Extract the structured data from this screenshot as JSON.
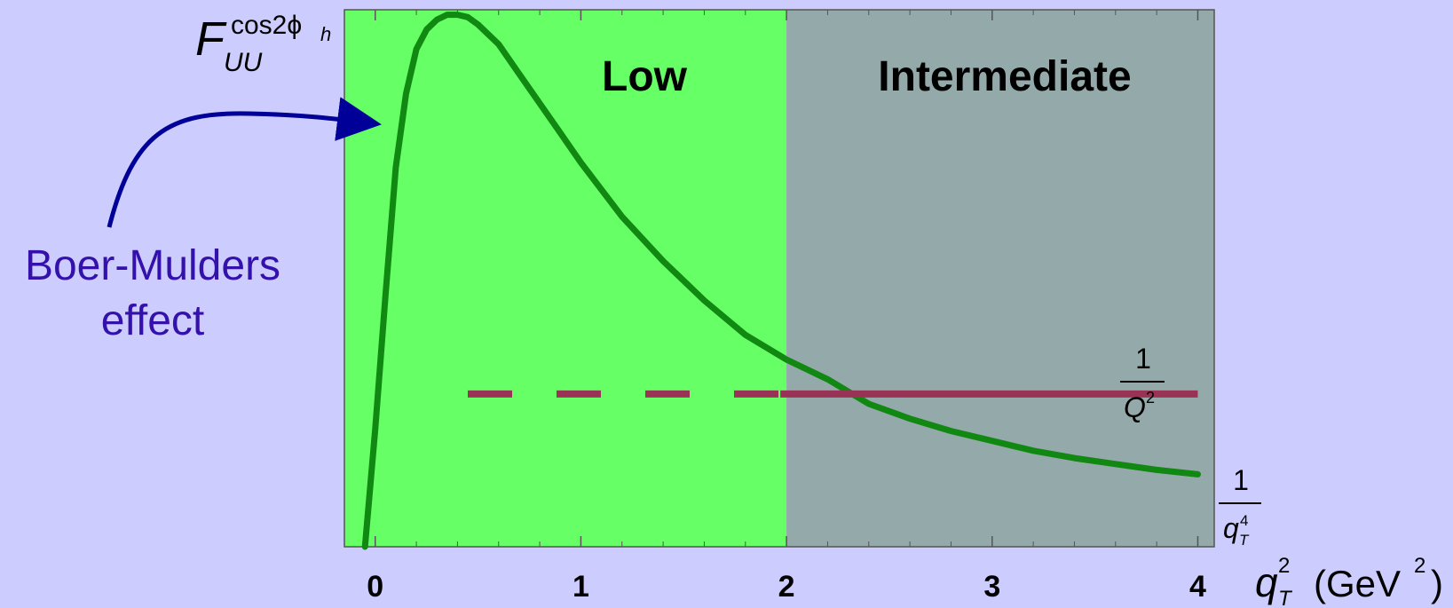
{
  "chart_data": {
    "type": "line",
    "xlim": [
      -0.15,
      4.08
    ],
    "ylim": [
      -0.09,
      1.0
    ],
    "grid": false,
    "regions": [
      {
        "label": "Low",
        "x": [
          -0.15,
          2.0
        ],
        "color": "#66ff66"
      },
      {
        "label": "Intermediate",
        "x": [
          2.0,
          4.08
        ],
        "color": "#94a9a9"
      }
    ],
    "x_ticks": [
      {
        "value": 0,
        "label": "0"
      },
      {
        "value": 1,
        "label": "1"
      },
      {
        "value": 2,
        "label": "2"
      },
      {
        "value": 3,
        "label": "3"
      },
      {
        "value": 4,
        "label": "4"
      }
    ],
    "xlabel": {
      "var": "q",
      "sub": "T",
      "sup": "2",
      "units_open": "(GeV",
      "units_sup": "2",
      "units_close": ")"
    },
    "ylabel": {
      "var": "F",
      "sub": "UU",
      "sup": "cos2ϕ",
      "sup_sub": "h"
    },
    "series": [
      {
        "kind": "curve",
        "color": "#118811",
        "x": [
          -0.05,
          0.0,
          0.05,
          0.1,
          0.15,
          0.2,
          0.25,
          0.3,
          0.35,
          0.4,
          0.45,
          0.5,
          0.6,
          0.7,
          0.8,
          0.9,
          1.0,
          1.2,
          1.4,
          1.6,
          1.8,
          2.0,
          2.2,
          2.4,
          2.6,
          2.8,
          3.0,
          3.2,
          3.4,
          3.6,
          3.8,
          4.0
        ],
        "y": [
          -0.09,
          0.15,
          0.42,
          0.68,
          0.83,
          0.92,
          0.96,
          0.98,
          0.99,
          0.99,
          0.985,
          0.97,
          0.93,
          0.87,
          0.81,
          0.75,
          0.69,
          0.58,
          0.49,
          0.41,
          0.34,
          0.29,
          0.25,
          0.2,
          0.17,
          0.145,
          0.125,
          0.105,
          0.09,
          0.078,
          0.066,
          0.057
        ]
      },
      {
        "kind": "dashed",
        "color": "#993355",
        "x": [
          0.45,
          1.97
        ],
        "y": [
          0.22,
          0.22
        ]
      },
      {
        "kind": "solid",
        "color": "#993355",
        "x": [
          1.97,
          4.0
        ],
        "y": [
          0.22,
          0.22
        ]
      }
    ],
    "annotations": [
      {
        "text": "Boer-Mulders",
        "line2": "effect"
      },
      {
        "label": "1/Q²",
        "num": "1",
        "den_var": "Q",
        "den_sup": "2"
      },
      {
        "label": "1/q_T⁴",
        "num": "1",
        "den_var": "q",
        "den_sub": "T",
        "den_sup": "4"
      }
    ]
  }
}
